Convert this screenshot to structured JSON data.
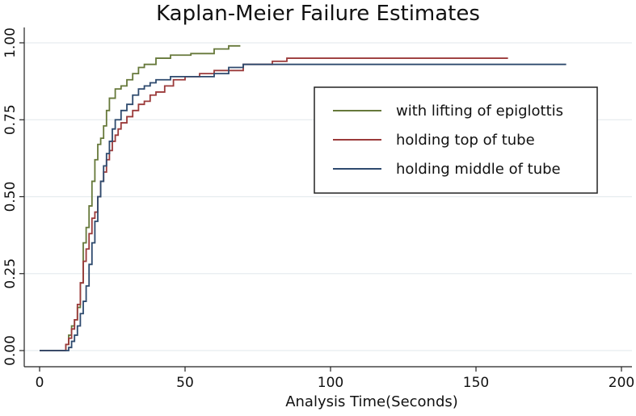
{
  "chart_data": {
    "type": "line",
    "title": "Kaplan-Meier Failure Estimates",
    "xlabel": "Analysis Time(Seconds)",
    "ylabel": "",
    "xlim": [
      0,
      200
    ],
    "ylim": [
      0,
      1
    ],
    "x_ticks": [
      "0",
      "50",
      "100",
      "150",
      "200"
    ],
    "y_ticks": [
      "0.00",
      "0.25",
      "0.50",
      "0.75",
      "1.00"
    ],
    "grid": "horizontal",
    "legend_position": "right",
    "series": [
      {
        "name": "with lifting of epiglottis",
        "color": "#66783a",
        "step_type": "post",
        "x": [
          0,
          9,
          10,
          11,
          12,
          13,
          14,
          15,
          16,
          17,
          18,
          19,
          20,
          21,
          22,
          23,
          24,
          26,
          28,
          30,
          32,
          34,
          36,
          40,
          45,
          52,
          60,
          65,
          69
        ],
        "y": [
          0,
          0.02,
          0.05,
          0.08,
          0.1,
          0.14,
          0.22,
          0.35,
          0.4,
          0.47,
          0.55,
          0.62,
          0.67,
          0.69,
          0.73,
          0.78,
          0.82,
          0.85,
          0.86,
          0.88,
          0.9,
          0.92,
          0.93,
          0.95,
          0.96,
          0.965,
          0.98,
          0.99,
          0.99
        ]
      },
      {
        "name": "holding top of tube",
        "color": "#9b3a3a",
        "step_type": "post",
        "x": [
          0,
          9,
          10,
          11,
          12,
          13,
          14,
          15,
          16,
          17,
          18,
          19,
          20,
          21,
          22,
          23,
          24,
          25,
          26,
          27,
          28,
          30,
          32,
          34,
          36,
          38,
          40,
          43,
          46,
          50,
          55,
          60,
          70,
          80,
          85,
          161
        ],
        "y": [
          0,
          0.02,
          0.04,
          0.07,
          0.1,
          0.15,
          0.22,
          0.29,
          0.33,
          0.38,
          0.43,
          0.45,
          0.5,
          0.55,
          0.58,
          0.62,
          0.65,
          0.68,
          0.7,
          0.72,
          0.74,
          0.76,
          0.78,
          0.8,
          0.81,
          0.83,
          0.84,
          0.86,
          0.88,
          0.89,
          0.9,
          0.91,
          0.93,
          0.94,
          0.95,
          0.95
        ]
      },
      {
        "name": "holding middle of tube",
        "color": "#2e4a6e",
        "step_type": "post",
        "x": [
          0,
          10,
          11,
          12,
          13,
          14,
          15,
          16,
          17,
          18,
          19,
          20,
          21,
          22,
          23,
          24,
          25,
          26,
          28,
          30,
          32,
          34,
          36,
          38,
          40,
          45,
          50,
          60,
          65,
          70,
          181
        ],
        "y": [
          0,
          0.01,
          0.03,
          0.05,
          0.08,
          0.12,
          0.16,
          0.21,
          0.28,
          0.35,
          0.42,
          0.5,
          0.55,
          0.6,
          0.64,
          0.68,
          0.72,
          0.75,
          0.78,
          0.8,
          0.83,
          0.85,
          0.86,
          0.87,
          0.88,
          0.89,
          0.89,
          0.9,
          0.92,
          0.93,
          0.93
        ]
      }
    ]
  }
}
